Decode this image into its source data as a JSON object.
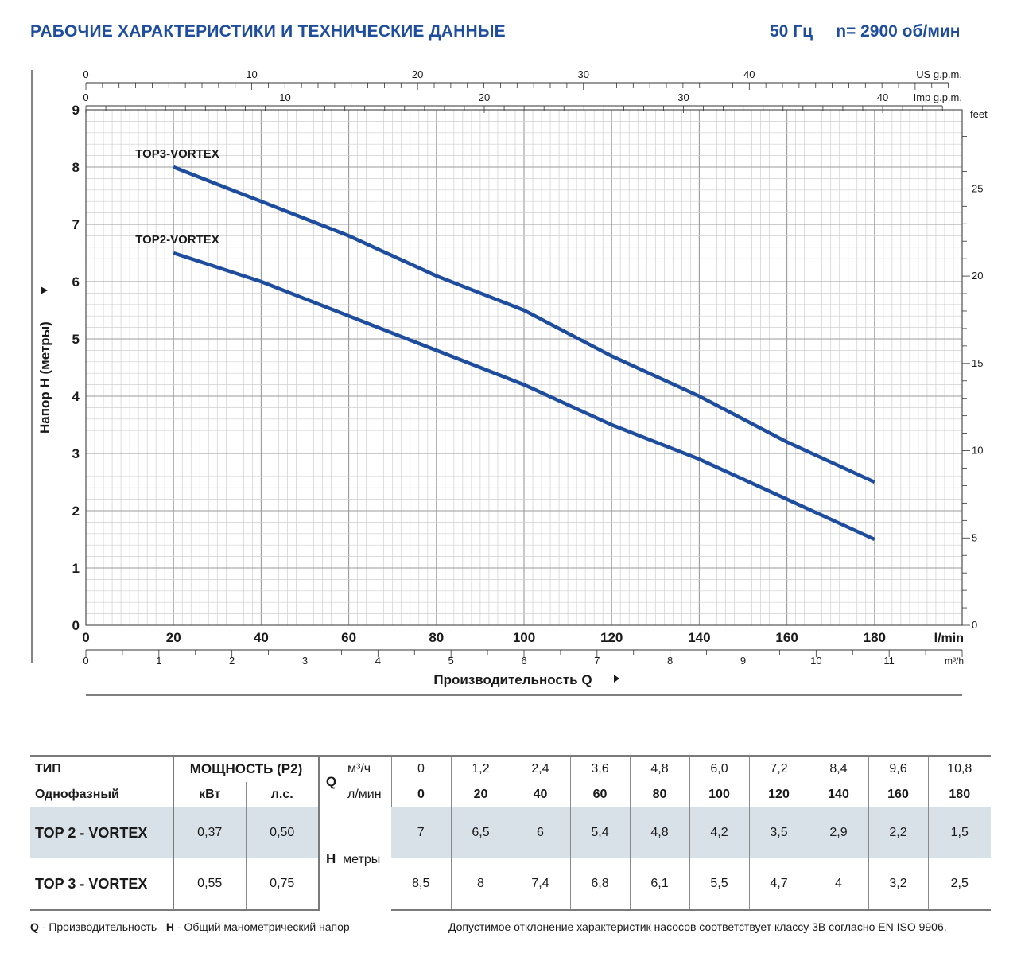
{
  "header": {
    "title": "РАБОЧИЕ ХАРАКТЕРИСТИКИ И ТЕХНИЧЕСКИЕ ДАННЫЕ",
    "frequency": "50 Гц",
    "speed": "n= 2900 об/мин"
  },
  "chart_data": {
    "type": "line",
    "ylabel": "Напор H (метры)",
    "xlabel": "Производительность Q",
    "x_unit": "l/min",
    "ylim": [
      0,
      9
    ],
    "xlim": [
      0,
      200
    ],
    "grid": true,
    "x_ticks": [
      "0",
      "20",
      "40",
      "60",
      "80",
      "100",
      "120",
      "140",
      "160",
      "180"
    ],
    "y_ticks": [
      "0",
      "1",
      "2",
      "3",
      "4",
      "5",
      "6",
      "7",
      "8",
      "9"
    ],
    "secondary_axes": {
      "us_gpm": {
        "label": "US g.p.m.",
        "ticks": [
          "0",
          "10",
          "20",
          "30",
          "40"
        ]
      },
      "imp_gpm": {
        "label": "Imp g.p.m.",
        "ticks": [
          "0",
          "10",
          "20",
          "30",
          "40"
        ]
      },
      "m3h": {
        "label": "m³/h",
        "ticks": [
          "0",
          "1",
          "2",
          "3",
          "4",
          "5",
          "6",
          "7",
          "8",
          "9",
          "10",
          "11"
        ]
      },
      "feet": {
        "label": "feet",
        "ticks": [
          "0",
          "5",
          "10",
          "15",
          "20",
          "25"
        ]
      }
    },
    "series": [
      {
        "name": "TOP3-VORTEX",
        "x": [
          20,
          40,
          60,
          80,
          100,
          120,
          140,
          160,
          180
        ],
        "y": [
          8,
          7.4,
          6.8,
          6.1,
          5.5,
          4.7,
          4,
          3.2,
          2.5
        ]
      },
      {
        "name": "TOP2-VORTEX",
        "x": [
          20,
          40,
          60,
          80,
          100,
          120,
          140,
          160,
          180
        ],
        "y": [
          6.5,
          6,
          5.4,
          4.8,
          4.2,
          3.5,
          2.9,
          2.2,
          1.5
        ]
      }
    ],
    "line_color": "#1f4d9e"
  },
  "table": {
    "type_label": "ТИП",
    "phase_label": "Однофазный",
    "power_label": "МОЩНОСТЬ (P2)",
    "kw_label": "кВт",
    "hp_label": "л.с.",
    "q_label": "Q",
    "m3h_label": "м³/ч",
    "lmin_label": "л/мин",
    "h_label": "H",
    "h_unit": "метры",
    "m3h_values": [
      "0",
      "1,2",
      "2,4",
      "3,6",
      "4,8",
      "6,0",
      "7,2",
      "8,4",
      "9,6",
      "10,8"
    ],
    "lmin_values": [
      "0",
      "20",
      "40",
      "60",
      "80",
      "100",
      "120",
      "140",
      "160",
      "180"
    ],
    "rows": [
      {
        "model": "TOP 2 - VORTEX",
        "kw": "0,37",
        "hp": "0,50",
        "h": [
          "7",
          "6,5",
          "6",
          "5,4",
          "4,8",
          "4,2",
          "3,5",
          "2,9",
          "2,2",
          "1,5"
        ]
      },
      {
        "model": "TOP 3 - VORTEX",
        "kw": "0,55",
        "hp": "0,75",
        "h": [
          "8,5",
          "8",
          "7,4",
          "6,8",
          "6,1",
          "5,5",
          "4,7",
          "4",
          "3,2",
          "2,5"
        ]
      }
    ]
  },
  "footer": {
    "q_letter": "Q",
    "q_text": " - Производительность",
    "h_letter": "H",
    "h_text": " - Общий манометрический напор",
    "note": "Допустимое отклонение характеристик насосов соответствует классу 3B согласно EN ISO 9906."
  }
}
